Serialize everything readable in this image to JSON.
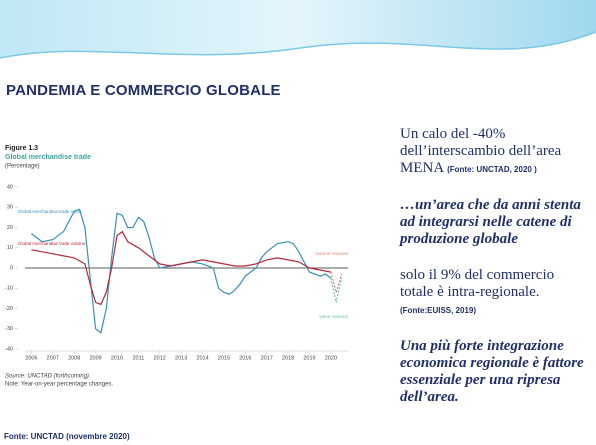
{
  "header": {
    "title": "PANDEMIA E COMMERCIO GLOBALE"
  },
  "chart_data": {
    "type": "line",
    "figure_label": "Figure 1.3",
    "title": "Global merchandise trade",
    "subtitle": "(Percentage)",
    "xlim": [
      2005.7,
      2020.8
    ],
    "xticks": [
      2006,
      2007,
      2008,
      2009,
      2010,
      2011,
      2012,
      2013,
      2014,
      2015,
      2016,
      2017,
      2018,
      2019,
      2020
    ],
    "ylim": [
      -40,
      40
    ],
    "yticks": [
      40,
      30,
      20,
      10,
      0,
      -10,
      -20,
      -30,
      -40
    ],
    "series": [
      {
        "name": "Global merchandise trade value",
        "color": "#3a8fb7",
        "dashed": false,
        "x": [
          2006,
          2006.5,
          2007,
          2007.5,
          2008,
          2008.25,
          2008.5,
          2008.75,
          2009,
          2009.25,
          2009.5,
          2009.75,
          2010,
          2010.25,
          2010.5,
          2010.75,
          2011,
          2011.25,
          2011.5,
          2011.75,
          2012,
          2012.5,
          2013,
          2013.5,
          2014,
          2014.5,
          2014.75,
          2015,
          2015.25,
          2015.5,
          2015.75,
          2016,
          2016.5,
          2016.75,
          2017,
          2017.5,
          2018,
          2018.25,
          2018.5,
          2018.75,
          2019,
          2019.5,
          2019.75,
          2020
        ],
        "values": [
          17,
          13,
          14,
          18,
          28,
          29,
          20,
          -5,
          -30,
          -32,
          -20,
          5,
          27,
          26,
          20,
          20,
          25,
          23,
          15,
          5,
          0,
          1,
          2,
          3,
          2,
          0,
          -10,
          -12,
          -13,
          -11,
          -8,
          -4,
          0,
          5,
          8,
          12,
          13,
          12,
          8,
          3,
          -2,
          -4,
          -3,
          -5
        ]
      },
      {
        "name": "Global merchandise trade volume",
        "color": "#b5283a",
        "dashed": false,
        "x": [
          2006,
          2007,
          2007.5,
          2008,
          2008.5,
          2008.75,
          2009,
          2009.25,
          2009.5,
          2009.75,
          2010,
          2010.25,
          2010.5,
          2011,
          2011.5,
          2012,
          2012.5,
          2013,
          2013.5,
          2014,
          2014.5,
          2015,
          2015.5,
          2016,
          2016.5,
          2017,
          2017.5,
          2018,
          2018.5,
          2019,
          2019.5,
          2020
        ],
        "values": [
          9,
          7,
          6,
          5,
          2,
          -8,
          -17,
          -18,
          -12,
          0,
          16,
          18,
          13,
          10,
          6,
          2,
          1,
          2,
          3,
          4,
          3,
          2,
          1,
          1,
          2,
          4,
          5,
          4,
          3,
          0,
          -1,
          -2
        ]
      },
      {
        "name": "Volume nowcast",
        "color": "#d9826a",
        "dashed": true,
        "x": [
          2020,
          2020.25,
          2020.5
        ],
        "values": [
          -2,
          -12,
          -3
        ]
      },
      {
        "name": "Value nowcast",
        "color": "#6fc3b5",
        "dashed": true,
        "x": [
          2020,
          2020.25,
          2020.5
        ],
        "values": [
          -5,
          -17,
          -5
        ]
      }
    ],
    "source": "Source: UNCTAD (forthcoming).",
    "note": "Note: Year-on-year percentage changes."
  },
  "text_blocks": [
    {
      "main": "Un calo del -40% dell’interscambio dell’area MENA",
      "note": "(Fonte: UNCTAD, 2020 )"
    },
    {
      "main": "…un’area che da anni stenta ad integrarsi nelle catene di produzione globale"
    },
    {
      "main": "solo  il 9% del commercio totale è intra-regionale.",
      "note": "(Fonte:EUISS, 2019)"
    },
    {
      "main": "Una più forte integrazione economica regionale è fattore essenziale per una ripresa dell’area."
    }
  ],
  "footer": "Fonte: UNCTAD  (novembre 2020)"
}
